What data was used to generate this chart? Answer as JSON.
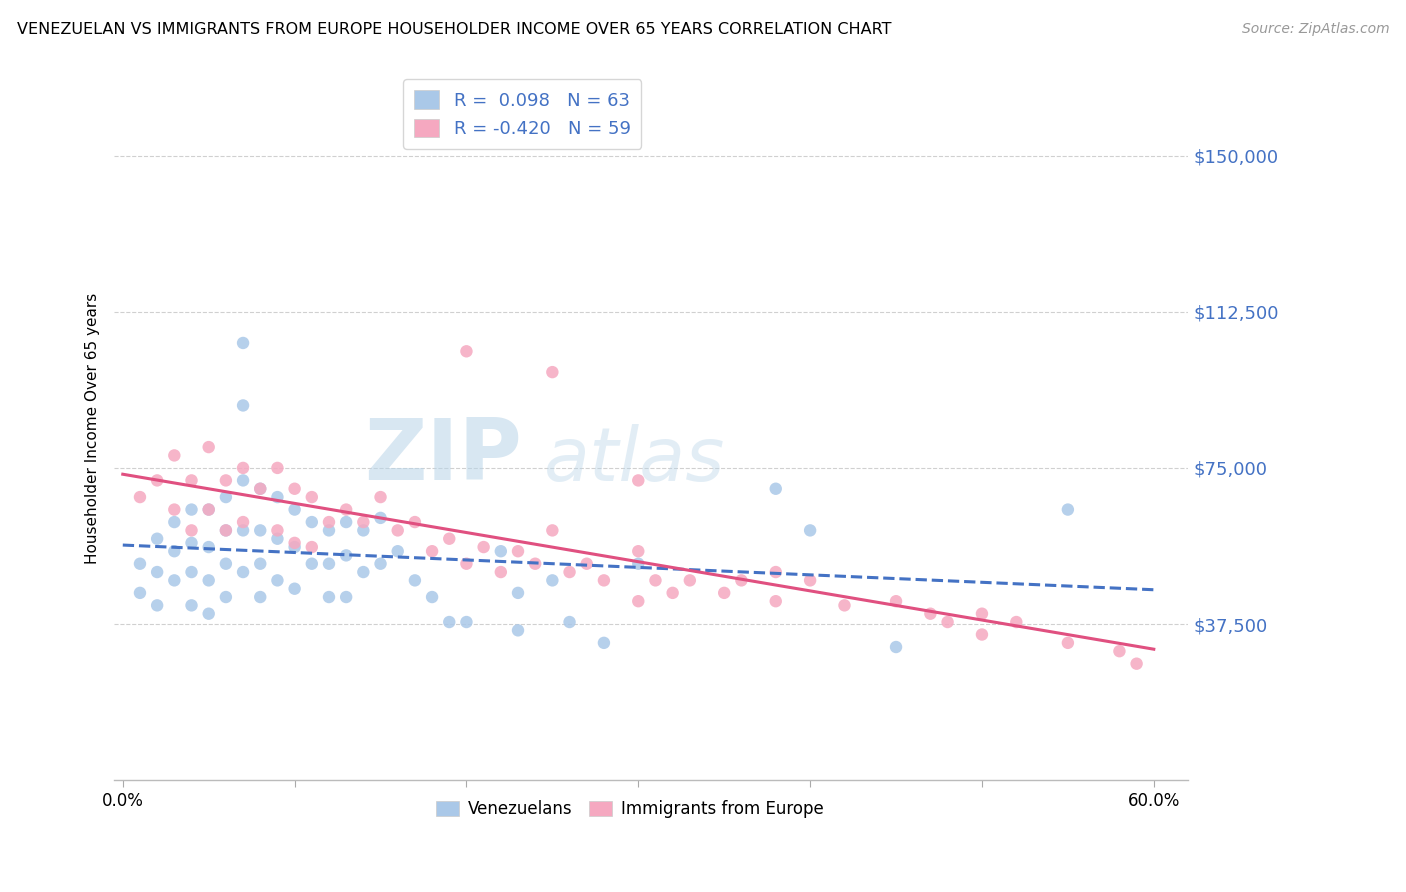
{
  "title": "VENEZUELAN VS IMMIGRANTS FROM EUROPE HOUSEHOLDER INCOME OVER 65 YEARS CORRELATION CHART",
  "source": "Source: ZipAtlas.com",
  "ylabel": "Householder Income Over 65 years",
  "xlim": [
    -0.005,
    0.62
  ],
  "ylim": [
    0,
    168750
  ],
  "yticks": [
    37500,
    75000,
    112500,
    150000
  ],
  "ytick_labels": [
    "$37,500",
    "$75,000",
    "$112,500",
    "$150,000"
  ],
  "xtick_positions": [
    0.0,
    0.1,
    0.2,
    0.3,
    0.4,
    0.5,
    0.6
  ],
  "xtick_labels_show": [
    "0.0%",
    "",
    "",
    "",
    "",
    "",
    "60.0%"
  ],
  "blue_R": 0.098,
  "blue_N": 63,
  "pink_R": -0.42,
  "pink_N": 59,
  "blue_color": "#aac8e8",
  "pink_color": "#f5a8c0",
  "blue_line_color": "#4472c4",
  "pink_line_color": "#e05080",
  "legend_label_blue": "Venezuelans",
  "legend_label_pink": "Immigrants from Europe",
  "blue_scatter_x": [
    0.01,
    0.01,
    0.02,
    0.02,
    0.02,
    0.03,
    0.03,
    0.03,
    0.04,
    0.04,
    0.04,
    0.04,
    0.05,
    0.05,
    0.05,
    0.05,
    0.06,
    0.06,
    0.06,
    0.06,
    0.07,
    0.07,
    0.07,
    0.07,
    0.07,
    0.08,
    0.08,
    0.08,
    0.08,
    0.09,
    0.09,
    0.09,
    0.1,
    0.1,
    0.1,
    0.11,
    0.11,
    0.12,
    0.12,
    0.12,
    0.13,
    0.13,
    0.13,
    0.14,
    0.14,
    0.15,
    0.15,
    0.16,
    0.17,
    0.18,
    0.19,
    0.2,
    0.22,
    0.23,
    0.23,
    0.25,
    0.26,
    0.28,
    0.3,
    0.38,
    0.4,
    0.45,
    0.55
  ],
  "blue_scatter_y": [
    52000,
    45000,
    58000,
    50000,
    42000,
    62000,
    55000,
    48000,
    65000,
    57000,
    50000,
    42000,
    65000,
    56000,
    48000,
    40000,
    68000,
    60000,
    52000,
    44000,
    105000,
    90000,
    72000,
    60000,
    50000,
    70000,
    60000,
    52000,
    44000,
    68000,
    58000,
    48000,
    65000,
    56000,
    46000,
    62000,
    52000,
    60000,
    52000,
    44000,
    62000,
    54000,
    44000,
    60000,
    50000,
    63000,
    52000,
    55000,
    48000,
    44000,
    38000,
    38000,
    55000,
    45000,
    36000,
    48000,
    38000,
    33000,
    52000,
    70000,
    60000,
    32000,
    65000
  ],
  "pink_scatter_x": [
    0.01,
    0.02,
    0.03,
    0.03,
    0.04,
    0.04,
    0.05,
    0.05,
    0.06,
    0.06,
    0.07,
    0.07,
    0.08,
    0.09,
    0.09,
    0.1,
    0.1,
    0.11,
    0.11,
    0.12,
    0.13,
    0.14,
    0.15,
    0.16,
    0.17,
    0.18,
    0.19,
    0.2,
    0.21,
    0.22,
    0.23,
    0.24,
    0.25,
    0.26,
    0.27,
    0.28,
    0.3,
    0.31,
    0.32,
    0.33,
    0.35,
    0.36,
    0.38,
    0.4,
    0.42,
    0.45,
    0.47,
    0.48,
    0.5,
    0.5,
    0.52,
    0.55,
    0.58,
    0.25,
    0.2,
    0.3,
    0.38,
    0.3,
    0.59
  ],
  "pink_scatter_y": [
    68000,
    72000,
    78000,
    65000,
    72000,
    60000,
    80000,
    65000,
    72000,
    60000,
    75000,
    62000,
    70000,
    75000,
    60000,
    70000,
    57000,
    68000,
    56000,
    62000,
    65000,
    62000,
    68000,
    60000,
    62000,
    55000,
    58000,
    52000,
    56000,
    50000,
    55000,
    52000,
    60000,
    50000,
    52000,
    48000,
    55000,
    48000,
    45000,
    48000,
    45000,
    48000,
    43000,
    48000,
    42000,
    43000,
    40000,
    38000,
    40000,
    35000,
    38000,
    33000,
    31000,
    98000,
    103000,
    72000,
    50000,
    43000,
    28000
  ]
}
